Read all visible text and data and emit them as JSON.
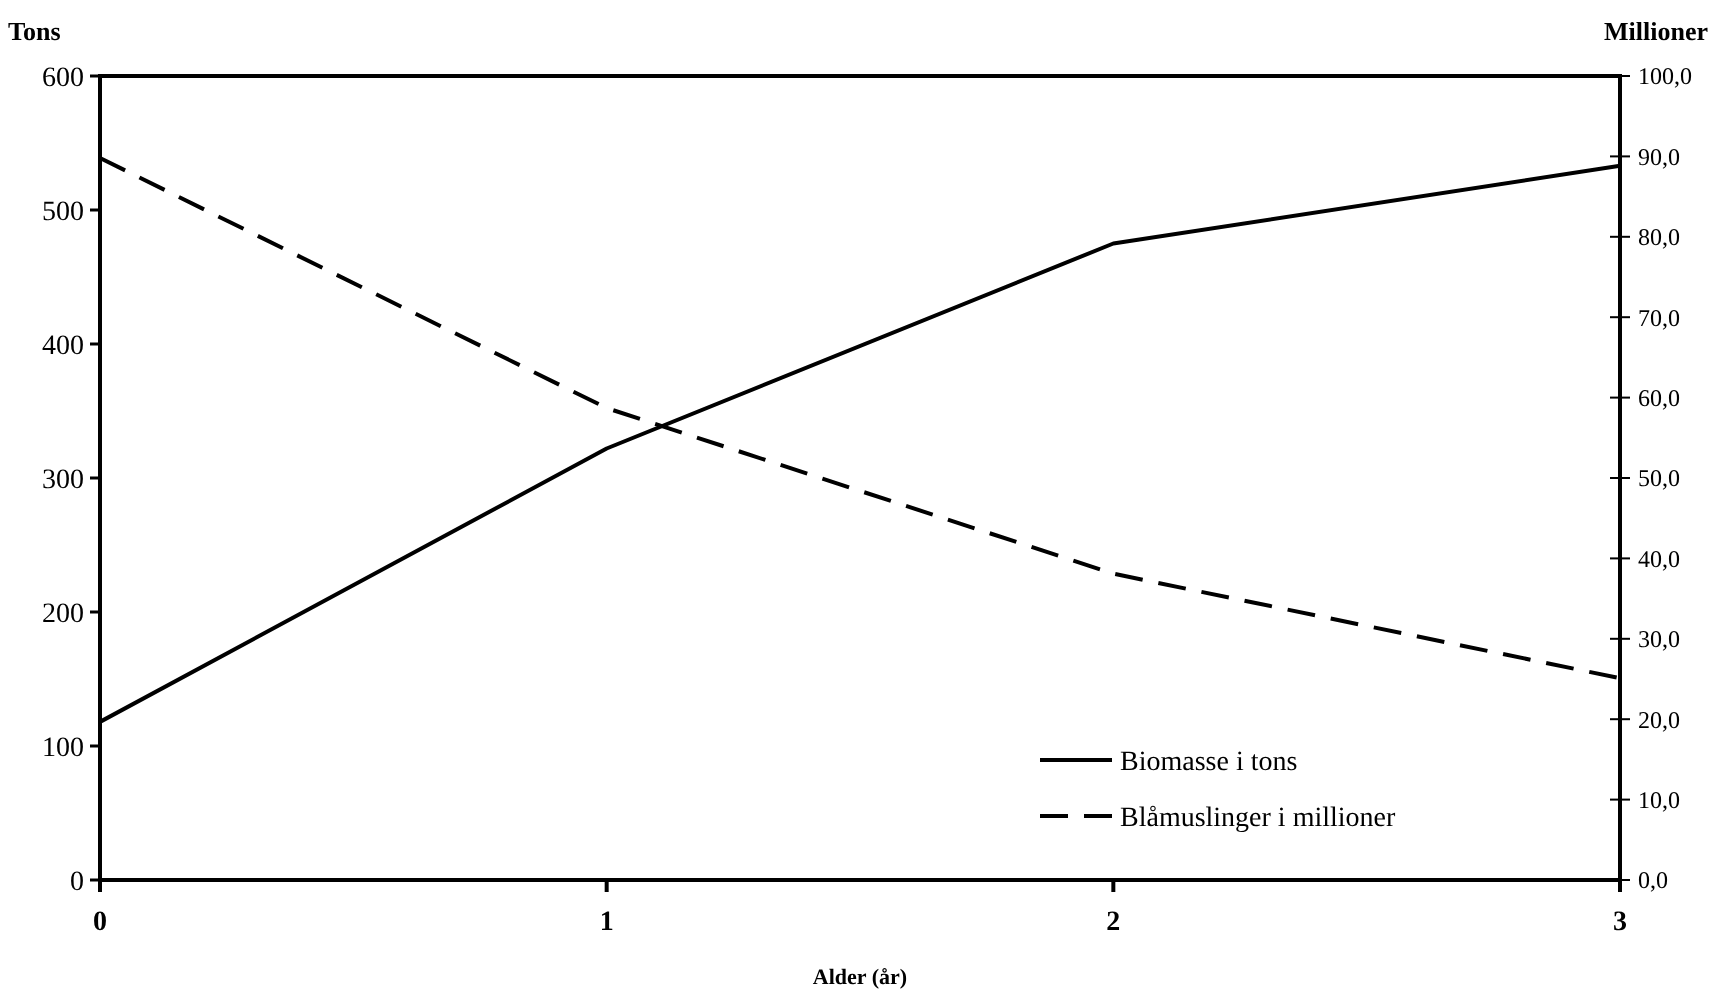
{
  "chart_data": {
    "type": "line",
    "ylabel": "Tons",
    "y2label": "Millioner",
    "xlabel": "Alder (år)",
    "x": [
      0,
      1,
      2,
      3
    ],
    "xlim": [
      0,
      3
    ],
    "xticks": [
      0,
      1,
      2,
      3
    ],
    "ylim": [
      0,
      600
    ],
    "yticks": [
      0,
      100,
      200,
      300,
      400,
      500,
      600
    ],
    "y2lim": [
      0,
      100
    ],
    "y2ticks": [
      {
        "value": 0,
        "label": "0,0"
      },
      {
        "value": 10,
        "label": "10,0"
      },
      {
        "value": 20,
        "label": "20,0"
      },
      {
        "value": 30,
        "label": "30,0"
      },
      {
        "value": 40,
        "label": "40,0"
      },
      {
        "value": 50,
        "label": "50,0"
      },
      {
        "value": 60,
        "label": "60,0"
      },
      {
        "value": 70,
        "label": "70,0"
      },
      {
        "value": 80,
        "label": "80,0"
      },
      {
        "value": 90,
        "label": "90,0"
      },
      {
        "value": 100,
        "label": "100,0"
      }
    ],
    "series": [
      {
        "name": "Biomasse i tons",
        "color": "#000000",
        "line_style": "solid",
        "values": [
          118,
          322,
          475,
          533
        ]
      },
      {
        "name": "Blåmuslinger i millioner",
        "color": "#000000",
        "line_style": "dashed",
        "axis": "y2",
        "values": [
          89.8,
          58.7,
          38.1,
          25.1
        ]
      }
    ],
    "legend": "bottom right",
    "grid": false,
    "marker": "none"
  }
}
